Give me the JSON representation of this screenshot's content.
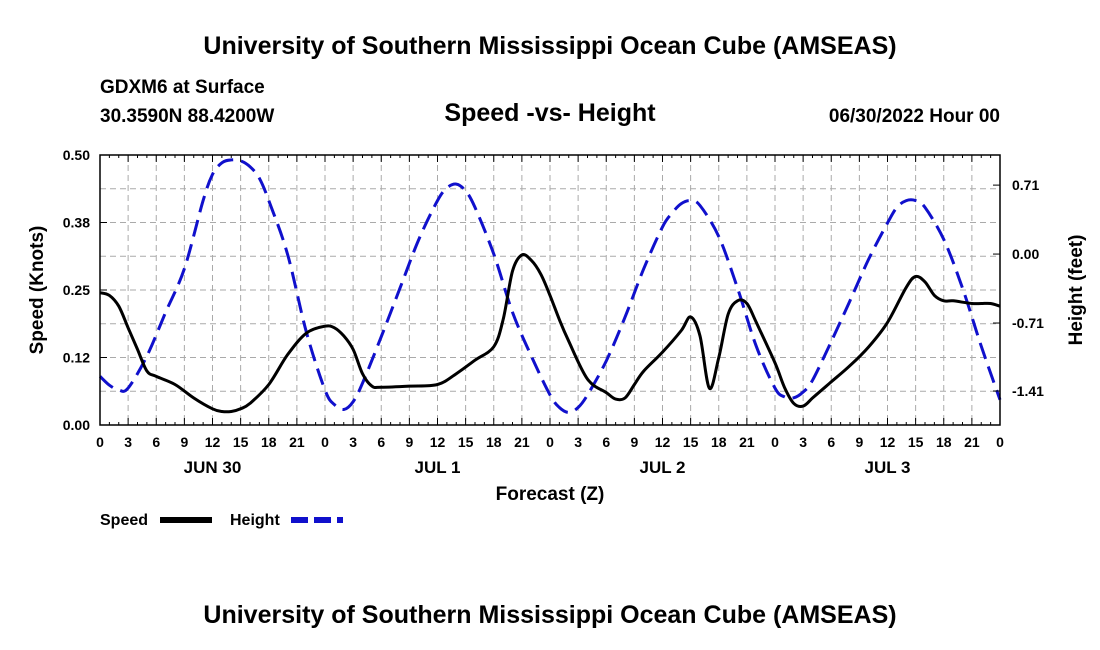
{
  "header": {
    "title_top": "University of Southern Mississippi Ocean Cube (AMSEAS)",
    "station": "GDXM6 at Surface",
    "coords": "30.3590N  88.4200W",
    "subtitle": "Speed -vs- Height",
    "datetime": "06/30/2022 Hour 00",
    "title_bottom": "University of Southern Mississippi Ocean Cube (AMSEAS)"
  },
  "colors": {
    "speed": "#000000",
    "height": "#1010cc",
    "grid": "#aaaaaa"
  },
  "chart_data": {
    "type": "line",
    "title": "Speed -vs- Height",
    "xlabel": "Forecast (Z)",
    "ylabel": "Speed (Knots)",
    "y2label": "Height (feet)",
    "xlim": [
      0,
      96
    ],
    "ylim": [
      0,
      0.5
    ],
    "y2lim": [
      -1.76,
      1.02
    ],
    "x_ticks": [
      0,
      3,
      6,
      9,
      12,
      15,
      18,
      21,
      24,
      27,
      30,
      33,
      36,
      39,
      42,
      45,
      48,
      51,
      54,
      57,
      60,
      63,
      66,
      69,
      72,
      75,
      78,
      81,
      84,
      87,
      90,
      93,
      96
    ],
    "x_tick_labels": [
      "0",
      "3",
      "6",
      "9",
      "12",
      "15",
      "18",
      "21",
      "0",
      "3",
      "6",
      "9",
      "12",
      "15",
      "18",
      "21",
      "0",
      "3",
      "6",
      "9",
      "12",
      "15",
      "18",
      "21",
      "0",
      "3",
      "6",
      "9",
      "12",
      "15",
      "18",
      "21",
      "0"
    ],
    "day_labels": [
      {
        "x": 12,
        "label": "JUN 30"
      },
      {
        "x": 36,
        "label": "JUL 1"
      },
      {
        "x": 60,
        "label": "JUL 2"
      },
      {
        "x": 84,
        "label": "JUL 3"
      }
    ],
    "y_ticks": [
      0,
      0.125,
      0.25,
      0.375,
      0.5
    ],
    "y_tick_labels": [
      "0.00",
      "0.12",
      "0.25",
      "0.38",
      "0.50"
    ],
    "y2_ticks": [
      0.71,
      0.0,
      -0.71,
      -1.41
    ],
    "y2_tick_labels": [
      "0.71",
      "0.00",
      "-0.71",
      "-1.41"
    ],
    "series": [
      {
        "name": "Speed",
        "axis": "left",
        "style": "solid",
        "x": [
          0,
          1,
          2,
          3,
          4,
          5,
          6,
          8,
          10,
          12,
          13,
          14,
          15,
          16,
          18,
          20,
          22,
          24,
          25,
          26,
          27,
          28,
          29,
          30,
          33,
          36,
          38,
          40,
          42,
          43,
          44,
          45,
          46,
          47,
          48,
          49,
          50,
          52,
          54,
          55,
          56,
          57,
          58,
          60,
          62,
          63,
          64,
          65,
          66,
          67,
          68,
          69,
          70,
          72,
          73,
          74,
          75,
          76,
          77,
          78,
          80,
          82,
          84,
          86,
          87,
          88,
          89,
          90,
          91,
          93,
          94,
          95,
          96
        ],
        "y": [
          0.245,
          0.24,
          0.22,
          0.18,
          0.14,
          0.1,
          0.09,
          0.075,
          0.05,
          0.03,
          0.025,
          0.025,
          0.03,
          0.04,
          0.075,
          0.13,
          0.17,
          0.183,
          0.18,
          0.165,
          0.14,
          0.095,
          0.072,
          0.07,
          0.072,
          0.075,
          0.095,
          0.12,
          0.145,
          0.195,
          0.285,
          0.315,
          0.305,
          0.28,
          0.24,
          0.195,
          0.155,
          0.085,
          0.06,
          0.048,
          0.05,
          0.075,
          0.1,
          0.135,
          0.175,
          0.2,
          0.165,
          0.068,
          0.125,
          0.205,
          0.23,
          0.225,
          0.19,
          0.115,
          0.07,
          0.04,
          0.035,
          0.05,
          0.065,
          0.08,
          0.11,
          0.145,
          0.19,
          0.255,
          0.275,
          0.265,
          0.24,
          0.23,
          0.23,
          0.225,
          0.225,
          0.225,
          0.22
        ]
      },
      {
        "name": "Height",
        "axis": "right",
        "style": "dashed",
        "x": [
          0,
          1,
          2,
          3,
          5,
          7,
          9,
          11,
          12,
          13,
          14,
          15,
          16,
          17,
          18,
          20,
          22,
          24,
          25,
          26,
          27,
          28,
          30,
          32,
          34,
          36,
          37,
          38,
          39,
          40,
          42,
          44,
          46,
          48,
          49,
          50,
          51,
          52,
          54,
          56,
          58,
          60,
          61,
          62,
          63,
          64,
          66,
          68,
          70,
          72,
          73,
          74,
          75,
          76,
          78,
          80,
          82,
          84,
          85,
          86,
          87,
          88,
          90,
          92,
          94,
          96
        ],
        "y": [
          -1.26,
          -1.35,
          -1.4,
          -1.38,
          -1.05,
          -0.6,
          -0.15,
          0.55,
          0.82,
          0.94,
          0.97,
          0.96,
          0.9,
          0.78,
          0.55,
          0.0,
          -0.8,
          -1.4,
          -1.55,
          -1.6,
          -1.52,
          -1.33,
          -0.85,
          -0.35,
          0.15,
          0.55,
          0.68,
          0.72,
          0.65,
          0.48,
          0.0,
          -0.6,
          -1.05,
          -1.45,
          -1.58,
          -1.63,
          -1.58,
          -1.45,
          -1.1,
          -0.65,
          -0.15,
          0.28,
          0.42,
          0.52,
          0.55,
          0.5,
          0.18,
          -0.35,
          -0.95,
          -1.38,
          -1.47,
          -1.48,
          -1.42,
          -1.3,
          -0.9,
          -0.48,
          -0.05,
          0.32,
          0.48,
          0.55,
          0.55,
          0.48,
          0.15,
          -0.35,
          -0.95,
          -1.5
        ]
      }
    ],
    "legend": [
      {
        "label": "Speed",
        "series": "Speed"
      },
      {
        "label": "Height",
        "series": "Height"
      }
    ],
    "grid": true,
    "legend_position": "bottom-left"
  }
}
